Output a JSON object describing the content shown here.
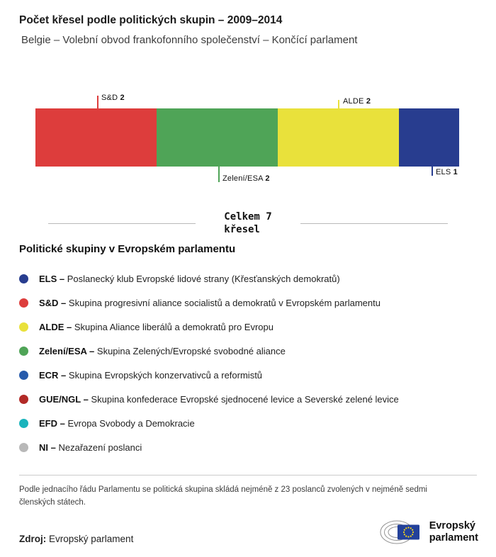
{
  "header": {
    "title": "Počet křesel podle politických skupin – 2009–2014",
    "subtitle": "Belgie – Volební obvod frankofonního společenství – Končící parlament"
  },
  "chart_data": {
    "type": "bar",
    "variant": "horizontal-stacked",
    "title": "Počet křesel podle politických skupin – 2009–2014",
    "total": 7,
    "total_label_line1": "Celkem 7",
    "total_label_line2": "křesel",
    "segments": [
      {
        "name": "S&D",
        "value": 2,
        "color": "#dd3d3c",
        "label_position": "top"
      },
      {
        "name": "Zelení/ESA",
        "value": 2,
        "color": "#4fa457",
        "label_position": "bottom"
      },
      {
        "name": "ALDE",
        "value": 2,
        "color": "#e9e13b",
        "label_position": "top"
      },
      {
        "name": "ELS",
        "value": 1,
        "color": "#283d8f",
        "label_position": "bottom"
      }
    ]
  },
  "legend": {
    "title": "Politické skupiny v Evropském parlamentu",
    "items": [
      {
        "abbr": "ELS –",
        "name": "Poslanecký klub Evropské lidové strany (Křesťanských demokratů)",
        "color": "#283d8f"
      },
      {
        "abbr": "S&D –",
        "name": "Skupina progresivní aliance socialistů a demokratů v Evropském parlamentu",
        "color": "#dd3d3c"
      },
      {
        "abbr": "ALDE –",
        "name": "Skupina Aliance liberálů a demokratů pro Evropu",
        "color": "#e9e13b"
      },
      {
        "abbr": "Zelení/ESA –",
        "name": "Skupina Zelených/Evropské svobodné aliance",
        "color": "#4fa457"
      },
      {
        "abbr": "ECR –",
        "name": "Skupina Evropských konzervativců a reformistů",
        "color": "#275bab"
      },
      {
        "abbr": "GUE/NGL –",
        "name": "Skupina konfederace Evropské sjednocené levice a Severské zelené levice",
        "color": "#b22a27"
      },
      {
        "abbr": "EFD –",
        "name": "Evropa Svobody a Demokracie",
        "color": "#1ab4bc"
      },
      {
        "abbr": "NI –",
        "name": "Nezařazení poslanci",
        "color": "#b8b8b8"
      }
    ]
  },
  "footnote": "Podle jednacího řádu Parlamentu se politická skupina skládá nejméně z 23 poslanců zvolených v nejméně sedmi členských státech.",
  "footer": {
    "source_label": "Zdroj:",
    "source_value": "Evropský parlament",
    "logo_line1": "Evropský",
    "logo_line2": "parlament"
  }
}
